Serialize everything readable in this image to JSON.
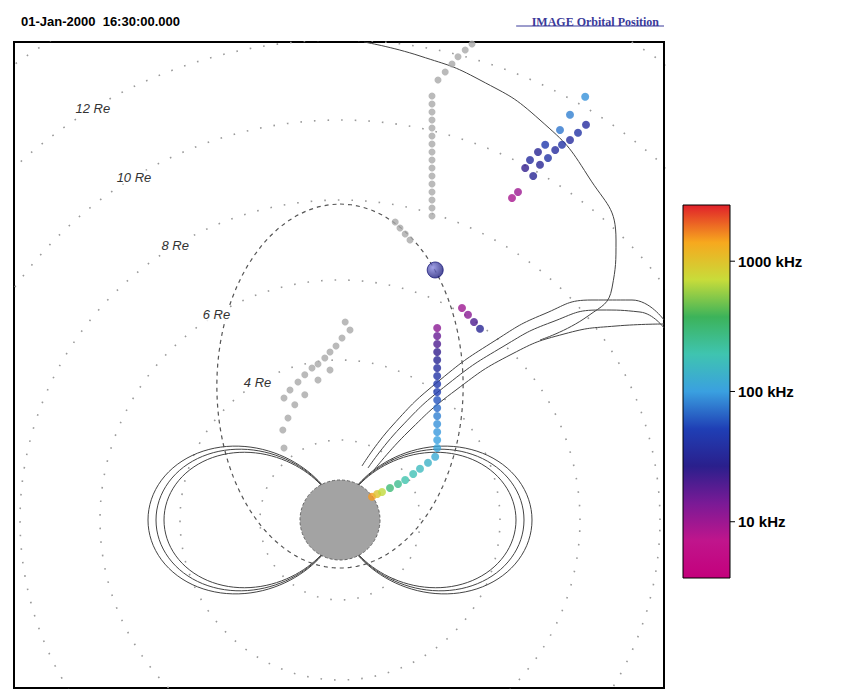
{
  "chart_data": {
    "type": "scatter",
    "title": "01-Jan-2000  16:30:00.000",
    "subtitle": "IMAGE Orbital Position",
    "xlim": [
      -8.15,
      8.1
    ],
    "ylim": [
      -4.2,
      11.95
    ],
    "tick_labels": false,
    "grid": false,
    "points": {
      "x": [
        0.8,
        0.93,
        1.05,
        1.25,
        1.45,
        1.63,
        1.83,
        2.0,
        2.2,
        2.38,
        2.43,
        2.43,
        2.43,
        2.43,
        2.43,
        2.43,
        2.43,
        2.43,
        2.43,
        2.43,
        2.43,
        2.43,
        2.43,
        2.43,
        2.43,
        2.43,
        3.05,
        3.2,
        3.35,
        3.5,
        4.3,
        4.45,
        4.63,
        4.83,
        5.0,
        4.75,
        4.95,
        5.2,
        5.38,
        5.55,
        5.75,
        5.95,
        6.15,
        5.13,
        5.5,
        5.75,
        6.13
      ],
      "y": [
        0.58,
        0.65,
        0.7,
        0.8,
        0.9,
        1.0,
        1.15,
        1.28,
        1.43,
        1.58,
        1.8,
        2.0,
        2.2,
        2.4,
        2.6,
        2.8,
        3.0,
        3.2,
        3.4,
        3.6,
        3.8,
        4.0,
        4.2,
        4.4,
        4.6,
        4.8,
        5.3,
        5.13,
        4.95,
        4.78,
        8.05,
        8.2,
        8.8,
        8.6,
        8.88,
        9.0,
        9.2,
        9.05,
        9.25,
        9.38,
        9.5,
        9.68,
        9.88,
        9.38,
        9.75,
        10.13,
        10.58
      ],
      "frequency_khz": [
        1500,
        1000,
        700,
        300,
        250,
        200,
        180,
        160,
        140,
        120,
        110,
        100,
        95,
        90,
        80,
        70,
        60,
        50,
        45,
        40,
        35,
        30,
        25,
        20,
        16,
        12,
        10,
        12,
        20,
        30,
        9,
        10,
        25,
        30,
        30,
        35,
        30,
        40,
        35,
        40,
        35,
        40,
        35,
        45,
        75,
        80,
        90
      ]
    },
    "unresolved_points": {
      "color": "#a9a9a9",
      "x": [
        2.3,
        2.3,
        2.3,
        2.3,
        2.3,
        2.3,
        2.3,
        2.3,
        2.3,
        2.3,
        2.3,
        2.3,
        2.3,
        2.3,
        2.3,
        2.3,
        2.45,
        2.63,
        2.8,
        2.95,
        3.13,
        3.3,
        1.38,
        1.5,
        1.63,
        1.75,
        0.13,
        0.25,
        0.05,
        -0.1,
        -0.25,
        -0.38,
        -0.55,
        -0.7,
        -0.88,
        -1.05,
        -1.25,
        -1.4,
        -0.88,
        -1.13,
        -1.3,
        -1.43,
        -1.4,
        -0.55,
        -0.25
      ],
      "y": [
        7.6,
        7.8,
        8.0,
        8.2,
        8.4,
        8.6,
        8.8,
        9.0,
        9.2,
        9.4,
        9.6,
        9.8,
        10.0,
        10.2,
        10.4,
        10.6,
        11.0,
        11.2,
        11.4,
        11.58,
        11.75,
        11.9,
        7.45,
        7.3,
        7.15,
        7.0,
        4.95,
        4.75,
        4.55,
        4.35,
        4.2,
        4.05,
        3.9,
        3.8,
        3.63,
        3.45,
        3.25,
        3.05,
        3.13,
        2.88,
        2.55,
        2.25,
        1.8,
        3.5,
        3.75
      ]
    },
    "satellite": {
      "x": 2.38,
      "y": 6.25,
      "color": "#1c1c7a"
    },
    "range_rings": [
      2,
      {
        "value": 4,
        "label": "4 Re"
      },
      {
        "value": 6,
        "label": "6 Re"
      },
      {
        "value": 8,
        "label": "8 Re"
      },
      {
        "value": 10,
        "label": "10 Re"
      },
      {
        "value": 12,
        "label": "12 Re"
      },
      14
    ],
    "orbit": {
      "apogee": 7.9,
      "perigee": 1.2
    },
    "closed_field_lines_L": [
      4.4,
      4.6,
      4.8
    ],
    "field_lines": [
      [
        [
          0.55,
          1.35
        ],
        [
          1.3,
          2.35
        ],
        [
          2.5,
          3.5
        ],
        [
          3.9,
          4.5
        ],
        [
          5.1,
          5.15
        ],
        [
          6.3,
          5.5
        ],
        [
          7.3,
          5.5
        ],
        [
          8.1,
          5.0
        ]
      ],
      [
        [
          0.7,
          1.3
        ],
        [
          1.5,
          2.3
        ],
        [
          2.7,
          3.4
        ],
        [
          4.1,
          4.35
        ],
        [
          5.3,
          4.95
        ],
        [
          6.5,
          5.25
        ],
        [
          7.5,
          5.2
        ],
        [
          8.1,
          4.8
        ]
      ],
      [
        [
          0.85,
          1.25
        ],
        [
          1.7,
          2.2
        ],
        [
          2.9,
          3.25
        ],
        [
          4.3,
          4.15
        ],
        [
          5.6,
          4.65
        ],
        [
          6.9,
          4.85
        ],
        [
          8.1,
          4.9
        ]
      ],
      [
        [
          0.6,
          11.95
        ],
        [
          2.0,
          11.6
        ],
        [
          3.5,
          11.0
        ],
        [
          5.0,
          10.0
        ],
        [
          6.2,
          8.6
        ],
        [
          6.9,
          7.0
        ],
        [
          6.8,
          5.8
        ],
        [
          6.2,
          5.1
        ],
        [
          5.0,
          4.5
        ]
      ]
    ],
    "color_bar": {
      "range": [
        3.7,
        2700
      ],
      "log": true,
      "ticks": [
        {
          "value": 1000,
          "label": "1000 kHz"
        },
        {
          "value": 100,
          "label": "100 kHz"
        },
        {
          "value": 10,
          "label": "10 kHz"
        }
      ],
      "colors": [
        "#c4007c",
        "#c0158c",
        "#7a1a96",
        "#2a1f8c",
        "#1f3fb5",
        "#3aa0e0",
        "#3fc4b0",
        "#3cb35a",
        "#c8dc3a",
        "#f7a81e",
        "#e0202a"
      ]
    }
  }
}
